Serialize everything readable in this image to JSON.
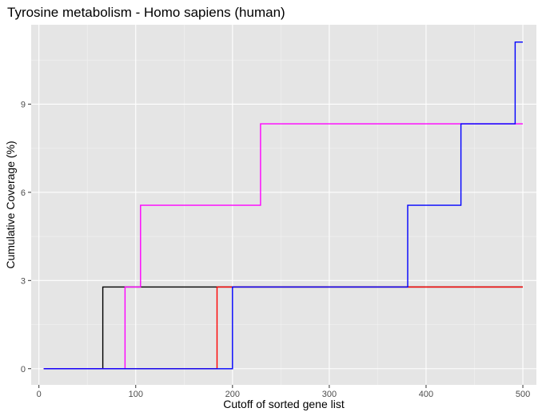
{
  "chart_data": {
    "type": "line",
    "step": true,
    "title": "Tyrosine metabolism - Homo sapiens (human)",
    "xlabel": "Cutoff of sorted gene list",
    "ylabel": "Cumulative Coverage (%)",
    "xlim": [
      -8,
      514
    ],
    "ylim": [
      -0.55,
      11.7
    ],
    "xticks": [
      0,
      100,
      200,
      300,
      400,
      500
    ],
    "xtick_labels": [
      "0",
      "100",
      "200",
      "300",
      "400",
      "500"
    ],
    "yticks": [
      0,
      3,
      6,
      9
    ],
    "ytick_labels": [
      "0",
      "3",
      "6",
      "9"
    ],
    "grid": true,
    "legend": "none",
    "series": [
      {
        "color": "#000000",
        "x": [
          5,
          66,
          66,
          500
        ],
        "y": [
          0,
          0,
          2.78,
          2.78
        ]
      },
      {
        "color": "#ff0000",
        "x": [
          5,
          184,
          184,
          500
        ],
        "y": [
          0,
          0,
          2.78,
          2.78
        ]
      },
      {
        "color": "#ff00ff",
        "x": [
          5,
          89,
          89,
          105,
          105,
          229,
          229,
          500
        ],
        "y": [
          0,
          0,
          2.78,
          2.78,
          5.56,
          5.56,
          8.33,
          8.33
        ]
      },
      {
        "color": "#0000ff",
        "x": [
          5,
          200,
          200,
          381,
          381,
          436,
          436,
          492,
          492,
          500
        ],
        "y": [
          0,
          0,
          2.78,
          2.78,
          5.56,
          5.56,
          8.33,
          8.33,
          11.11,
          11.11
        ]
      }
    ]
  }
}
